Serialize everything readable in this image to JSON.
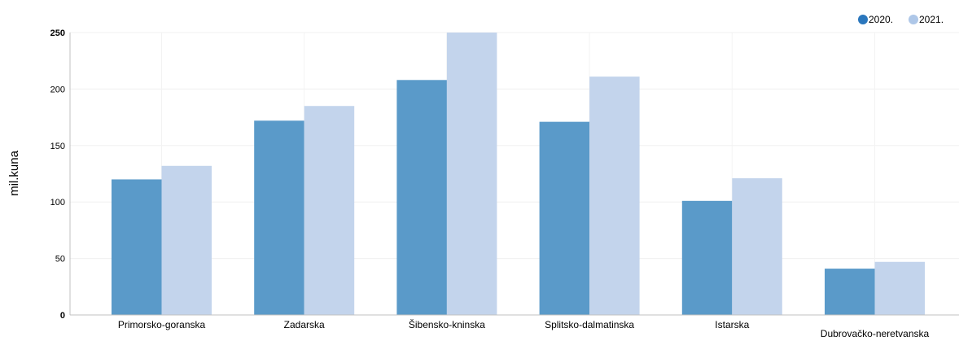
{
  "chart_data": {
    "type": "bar",
    "ylabel": "mil.kuna",
    "ylim": [
      0,
      250
    ],
    "yticks": [
      "0",
      "50",
      "100",
      "150",
      "200",
      "250"
    ],
    "grid": true,
    "legend_position": "top-right",
    "categories": [
      "Primorsko-goranska",
      "Zadarska",
      "Šibensko-kninska",
      "Splitsko-dalmatinska",
      "Istarska",
      "Dubrovačko-neretvanska"
    ],
    "series": [
      {
        "name": "2020.",
        "color": "#5a9ac9",
        "values": [
          120,
          172,
          208,
          171,
          101,
          41
        ]
      },
      {
        "name": "2021.",
        "color": "#c3d4ec",
        "values": [
          132,
          185,
          250,
          211,
          121,
          47
        ]
      }
    ]
  },
  "legend_marker_colors": [
    "#2b77bd",
    "#aec7e8"
  ]
}
